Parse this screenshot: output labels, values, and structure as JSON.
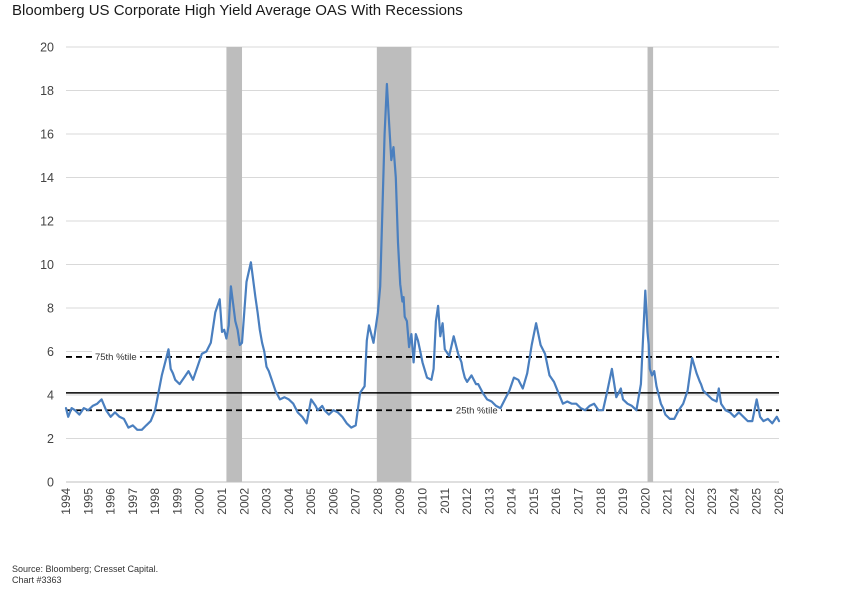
{
  "title": "Bloomberg US Corporate High Yield Average OAS With Recessions",
  "source": "Source: Bloomberg; Cresset Capital.",
  "chart_number": "Chart #3363",
  "colors": {
    "series": "#4a7fbf",
    "recession": "#bdbdbd",
    "grid": "#d9d9d9",
    "reference": "#000000"
  },
  "chart_data": {
    "type": "line",
    "title": "Bloomberg US Corporate High Yield Average OAS With Recessions",
    "xlabel": "",
    "ylabel": "",
    "xlim": [
      1994,
      2026
    ],
    "ylim": [
      0,
      20
    ],
    "y_ticks": [
      0,
      2,
      4,
      6,
      8,
      10,
      12,
      14,
      16,
      18,
      20
    ],
    "x_ticks": [
      "1994",
      "1995",
      "1996",
      "1997",
      "1998",
      "1999",
      "2000",
      "2001",
      "2002",
      "2003",
      "2004",
      "2005",
      "2006",
      "2007",
      "2008",
      "2009",
      "2010",
      "2011",
      "2012",
      "2013",
      "2014",
      "2015",
      "2016",
      "2017",
      "2018",
      "2019",
      "2020",
      "2021",
      "2022",
      "2023",
      "2024",
      "2025",
      "2026"
    ],
    "grid": "horizontal",
    "recessions": [
      {
        "start": 2001.2,
        "end": 2001.9
      },
      {
        "start": 2007.95,
        "end": 2009.5
      },
      {
        "start": 2020.1,
        "end": 2020.35
      }
    ],
    "reference_lines": [
      {
        "label": "75th %tile",
        "value": 5.75,
        "style": "dashed"
      },
      {
        "label": "",
        "value": 4.1,
        "style": "solid"
      },
      {
        "label": "25th %tile",
        "value": 3.3,
        "style": "dashed"
      }
    ],
    "series": [
      {
        "x": [
          1994.0,
          1994.1,
          1994.25,
          1994.4,
          1994.6,
          1994.8,
          1995.0,
          1995.2,
          1995.4,
          1995.6,
          1995.8,
          1996.0,
          1996.2,
          1996.4,
          1996.6,
          1996.8,
          1997.0,
          1997.2,
          1997.4,
          1997.6,
          1997.8,
          1998.0,
          1998.3,
          1998.5,
          1998.6,
          1998.7,
          1998.8,
          1998.9,
          1999.1,
          1999.3,
          1999.5,
          1999.7,
          1999.9,
          2000.1,
          2000.3,
          2000.5,
          2000.7,
          2000.9,
          2001.0,
          2001.1,
          2001.2,
          2001.3,
          2001.4,
          2001.5,
          2001.6,
          2001.7,
          2001.8,
          2001.9,
          2002.1,
          2002.3,
          2002.5,
          2002.6,
          2002.7,
          2002.8,
          2002.9,
          2003.0,
          2003.1,
          2003.2,
          2003.4,
          2003.6,
          2003.8,
          2004.0,
          2004.2,
          2004.4,
          2004.6,
          2004.8,
          2005.0,
          2005.2,
          2005.3,
          2005.4,
          2005.5,
          2005.6,
          2005.8,
          2006.0,
          2006.2,
          2006.4,
          2006.6,
          2006.8,
          2007.0,
          2007.2,
          2007.4,
          2007.5,
          2007.6,
          2007.8,
          2008.0,
          2008.1,
          2008.2,
          2008.3,
          2008.4,
          2008.5,
          2008.6,
          2008.7,
          2008.8,
          2008.9,
          2009.0,
          2009.1,
          2009.15,
          2009.2,
          2009.3,
          2009.4,
          2009.5,
          2009.6,
          2009.7,
          2009.8,
          2009.9,
          2010.0,
          2010.2,
          2010.4,
          2010.5,
          2010.6,
          2010.7,
          2010.8,
          2010.9,
          2011.0,
          2011.2,
          2011.4,
          2011.6,
          2011.75,
          2011.8,
          2011.9,
          2012.0,
          2012.2,
          2012.4,
          2012.5,
          2012.7,
          2012.9,
          2013.1,
          2013.3,
          2013.5,
          2013.7,
          2013.9,
          2014.1,
          2014.3,
          2014.5,
          2014.7,
          2014.9,
          2015.1,
          2015.3,
          2015.5,
          2015.7,
          2015.9,
          2016.1,
          2016.3,
          2016.5,
          2016.7,
          2016.9,
          2017.1,
          2017.3,
          2017.5,
          2017.7,
          2017.9,
          2018.1,
          2018.3,
          2018.5,
          2018.7,
          2018.9,
          2019.0,
          2019.2,
          2019.4,
          2019.6,
          2019.8,
          2020.0,
          2020.1,
          2020.15,
          2020.2,
          2020.3,
          2020.4,
          2020.5,
          2020.6,
          2020.7,
          2020.8,
          2020.9,
          2021.1,
          2021.3,
          2021.5,
          2021.7,
          2021.9,
          2022.1,
          2022.3,
          2022.45,
          2022.5,
          2022.6,
          2022.7,
          2022.8,
          2023.0,
          2023.2,
          2023.3,
          2023.4,
          2023.6,
          2023.8,
          2024.0,
          2024.2,
          2024.4,
          2024.6,
          2024.8,
          2025.0,
          2025.15,
          2025.3,
          2025.5,
          2025.7,
          2025.9,
          2026.0
        ],
        "values": [
          3.4,
          3.0,
          3.4,
          3.3,
          3.1,
          3.4,
          3.3,
          3.5,
          3.6,
          3.8,
          3.3,
          3.0,
          3.2,
          3.0,
          2.9,
          2.5,
          2.6,
          2.4,
          2.4,
          2.6,
          2.8,
          3.3,
          4.9,
          5.7,
          6.1,
          5.2,
          5.0,
          4.7,
          4.5,
          4.8,
          5.1,
          4.7,
          5.3,
          5.9,
          6.0,
          6.4,
          7.8,
          8.4,
          6.9,
          7.0,
          6.6,
          7.2,
          9.0,
          8.2,
          7.4,
          7.0,
          6.3,
          6.4,
          9.2,
          10.1,
          8.5,
          7.8,
          7.0,
          6.4,
          6.0,
          5.3,
          5.1,
          4.8,
          4.2,
          3.8,
          3.9,
          3.8,
          3.6,
          3.2,
          3.0,
          2.7,
          3.8,
          3.5,
          3.3,
          3.4,
          3.5,
          3.3,
          3.1,
          3.3,
          3.2,
          3.0,
          2.7,
          2.5,
          2.6,
          4.1,
          4.4,
          6.5,
          7.2,
          6.4,
          7.8,
          9.0,
          12.5,
          16.0,
          18.3,
          16.5,
          14.8,
          15.4,
          14.0,
          11.0,
          9.1,
          8.3,
          8.5,
          7.6,
          7.4,
          6.2,
          6.8,
          5.5,
          6.8,
          6.5,
          6.0,
          5.5,
          4.8,
          4.7,
          5.2,
          7.4,
          8.1,
          6.7,
          7.3,
          6.1,
          5.8,
          6.7,
          5.9,
          5.5,
          5.2,
          4.8,
          4.6,
          4.9,
          4.5,
          4.5,
          4.1,
          3.8,
          3.7,
          3.5,
          3.4,
          3.8,
          4.2,
          4.8,
          4.7,
          4.3,
          5.0,
          6.3,
          7.3,
          6.3,
          5.9,
          4.9,
          4.6,
          4.1,
          3.6,
          3.7,
          3.6,
          3.6,
          3.4,
          3.3,
          3.5,
          3.6,
          3.3,
          3.3,
          4.2,
          5.2,
          3.9,
          4.3,
          3.8,
          3.6,
          3.5,
          3.3,
          4.5,
          8.8,
          6.9,
          6.3,
          5.2,
          4.9,
          5.1,
          4.4,
          4.0,
          3.6,
          3.4,
          3.1,
          2.9,
          2.9,
          3.3,
          3.6,
          4.2,
          5.7,
          5.0,
          4.6,
          4.5,
          4.2,
          4.1,
          4.0,
          3.8,
          3.7,
          4.3,
          3.6,
          3.3,
          3.2,
          3.0,
          3.2,
          3.0,
          2.8,
          2.8,
          3.8,
          3.0,
          2.8,
          2.9,
          2.7,
          3.0,
          2.8
        ]
      }
    ]
  }
}
